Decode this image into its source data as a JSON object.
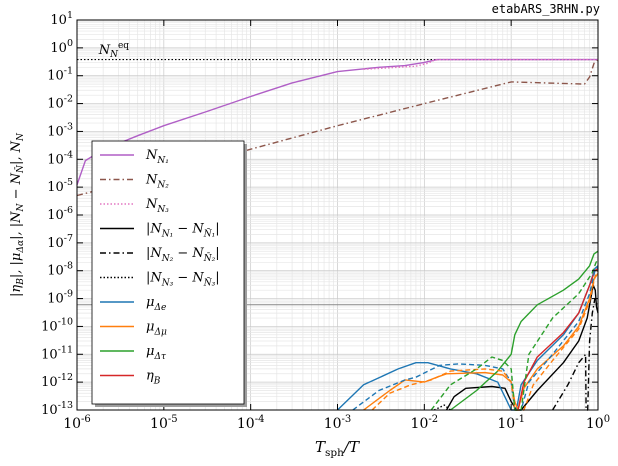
{
  "header": {
    "filename": "etabARS_3RHN.py"
  },
  "chart_data": {
    "type": "line",
    "title": "",
    "xlabel": "T_sph/T",
    "ylabel": "|η_B|, |μ_Δα|, |N_Nj − N_N̄j|, N_Nj",
    "xscale": "log",
    "yscale": "log",
    "xlim": [
      1e-06,
      1
    ],
    "ylim": [
      1e-13,
      10
    ],
    "grid": true,
    "legend_position": "left",
    "x_ticks": [
      "10^-6",
      "10^-5",
      "10^-4",
      "10^-3",
      "10^-2",
      "10^-1",
      "10^0"
    ],
    "y_ticks": [
      "10^-13",
      "10^-12",
      "10^-11",
      "10^-10",
      "10^-9",
      "10^-8",
      "10^-7",
      "10^-6",
      "10^-5",
      "10^-4",
      "10^-3",
      "10^-2",
      "10^-1",
      "10^0",
      "10^1"
    ],
    "annotations": [
      {
        "text": "N_N^eq",
        "x": 1.6e-06,
        "y": 0.6
      }
    ],
    "reference_lines": [
      {
        "name": "N_N^eq",
        "y": 0.38,
        "style": "dotted",
        "color": "#000000"
      },
      {
        "name": "eta_B_observed",
        "y": 6e-10,
        "style": "solid",
        "color": "#888888"
      }
    ],
    "series": [
      {
        "name": "N_N1",
        "color": "#b05fc6",
        "style": "solid",
        "points": [
          [
            1e-06,
            1.2e-05
          ],
          [
            1.25e-06,
            9e-05
          ],
          [
            2e-06,
            0.00022
          ],
          [
            5e-06,
            0.0007
          ],
          [
            1e-05,
            0.0016
          ],
          [
            3e-05,
            0.005
          ],
          [
            0.0001,
            0.018
          ],
          [
            0.0003,
            0.055
          ],
          [
            0.001,
            0.14
          ],
          [
            0.003,
            0.2
          ],
          [
            0.006,
            0.23
          ],
          [
            0.01,
            0.3
          ],
          [
            0.014,
            0.38
          ],
          [
            1,
            0.38
          ]
        ]
      },
      {
        "name": "N_N2",
        "color": "#8c564b",
        "style": "dashdot",
        "points": [
          [
            1e-06,
            5e-06
          ],
          [
            1e-05,
            3e-05
          ],
          [
            0.0001,
            0.00023
          ],
          [
            0.001,
            0.0016
          ],
          [
            0.01,
            0.01
          ],
          [
            0.1,
            0.06
          ],
          [
            0.7,
            0.05
          ],
          [
            0.8,
            0.09
          ],
          [
            0.9,
            0.28
          ],
          [
            1,
            0.38
          ]
        ]
      },
      {
        "name": "N_N3",
        "color": "#e377c2",
        "style": "dotted",
        "points": [
          [
            0.002,
            0.17
          ],
          [
            0.005,
            0.2
          ],
          [
            0.008,
            0.22
          ],
          [
            0.011,
            0.28
          ],
          [
            0.013,
            0.36
          ],
          [
            0.015,
            0.38
          ],
          [
            1,
            0.38
          ]
        ]
      },
      {
        "name": "|N_N1 − N_N̄1|",
        "color": "#000000",
        "style": "solid",
        "points": [
          [
            0.018,
            1e-13
          ],
          [
            0.022,
            3e-13
          ],
          [
            0.03,
            6e-13
          ],
          [
            0.06,
            7e-13
          ],
          [
            0.085,
            6e-13
          ],
          [
            0.1,
            2e-13
          ],
          [
            0.115,
            1e-13
          ],
          [
            0.13,
            1e-13
          ],
          [
            0.2,
            5e-13
          ],
          [
            0.4,
            5e-12
          ],
          [
            0.6,
            3e-11
          ],
          [
            0.75,
            2e-10
          ],
          [
            0.88,
            3e-09
          ],
          [
            0.93,
            2e-09
          ],
          [
            0.96,
            5e-10
          ],
          [
            1,
            3e-10
          ]
        ]
      },
      {
        "name": "|N_N2 − N_N̄2|",
        "color": "#000000",
        "style": "dashdot",
        "points": [
          [
            0.3,
            1e-13
          ],
          [
            0.45,
            8e-13
          ],
          [
            0.6,
            5e-12
          ],
          [
            0.68,
            8e-12
          ],
          [
            0.72,
            1e-11
          ],
          [
            0.73,
            1e-13
          ],
          [
            0.76,
            1e-13
          ],
          [
            0.8,
            3e-11
          ],
          [
            0.86,
            3e-10
          ],
          [
            0.92,
            1e-09
          ],
          [
            0.97,
            6e-10
          ],
          [
            1,
            5e-10
          ]
        ]
      },
      {
        "name": "|N_N3 − N_N̄3|",
        "color": "#000000",
        "style": "dotted",
        "points": [
          [
            0.013,
            1e-13
          ],
          [
            0.017,
            1.5e-13
          ],
          [
            0.02,
            1e-13
          ]
        ]
      },
      {
        "name": "μ_Δe",
        "color": "#1f77b4",
        "style": "solid",
        "points": [
          [
            0.001,
            1e-13
          ],
          [
            0.002,
            8e-13
          ],
          [
            0.005,
            3e-12
          ],
          [
            0.008,
            5e-12
          ],
          [
            0.011,
            5e-12
          ],
          [
            0.02,
            3e-12
          ],
          [
            0.04,
            2e-12
          ],
          [
            0.07,
            1e-12
          ],
          [
            0.09,
            2e-13
          ],
          [
            0.1,
            1e-13
          ],
          [
            0.115,
            1e-13
          ],
          [
            0.13,
            8e-13
          ],
          [
            0.2,
            6e-12
          ],
          [
            0.4,
            5e-11
          ],
          [
            0.6,
            3e-10
          ],
          [
            0.8,
            3e-09
          ],
          [
            0.92,
            1.2e-08
          ],
          [
            1,
            1.5e-08
          ]
        ]
      },
      {
        "name": "μ_Δμ",
        "color": "#ff7f0e",
        "style": "solid",
        "points": [
          [
            0.002,
            1e-13
          ],
          [
            0.004,
            5e-13
          ],
          [
            0.006,
            1.2e-12
          ],
          [
            0.01,
            1e-12
          ],
          [
            0.014,
            1.5e-12
          ],
          [
            0.018,
            2e-12
          ],
          [
            0.05,
            2.2e-12
          ],
          [
            0.08,
            1.8e-12
          ],
          [
            0.1,
            1e-12
          ],
          [
            0.11,
            2e-13
          ],
          [
            0.12,
            1e-13
          ],
          [
            0.14,
            6e-13
          ],
          [
            0.2,
            3e-12
          ],
          [
            0.4,
            2e-11
          ],
          [
            0.6,
            1e-10
          ],
          [
            0.8,
            1e-09
          ],
          [
            0.9,
            5e-09
          ],
          [
            1,
            8e-09
          ]
        ]
      },
      {
        "name": "μ_Δτ",
        "color": "#2ca02c",
        "style": "solid",
        "points": [
          [
            0.02,
            1e-13
          ],
          [
            0.04,
            5e-13
          ],
          [
            0.07,
            2.5e-12
          ],
          [
            0.1,
            1e-11
          ],
          [
            0.11,
            5e-11
          ],
          [
            0.13,
            1.5e-10
          ],
          [
            0.2,
            6e-10
          ],
          [
            0.4,
            2e-09
          ],
          [
            0.6,
            5e-09
          ],
          [
            0.8,
            1.5e-08
          ],
          [
            0.9,
            4e-08
          ],
          [
            1,
            5e-08
          ]
        ]
      },
      {
        "name": "η_B",
        "color": "#d62728",
        "style": "solid",
        "points": [
          [
            0.12,
            1e-13
          ],
          [
            0.14,
            1e-12
          ],
          [
            0.2,
            8e-12
          ],
          [
            0.4,
            6e-11
          ],
          [
            0.6,
            3e-10
          ],
          [
            0.8,
            3e-09
          ],
          [
            0.92,
            1e-08
          ],
          [
            1,
            1.2e-08
          ]
        ]
      },
      {
        "name": "μ_Δe (dashed)",
        "color": "#1f77b4",
        "style": "dashed",
        "points": [
          [
            0.0015,
            1e-13
          ],
          [
            0.003,
            5e-13
          ],
          [
            0.006,
            1.2e-12
          ],
          [
            0.008,
            1.5e-12
          ],
          [
            0.015,
            4e-12
          ],
          [
            0.025,
            4.5e-12
          ],
          [
            0.05,
            4e-12
          ],
          [
            0.08,
            3e-12
          ],
          [
            0.1,
            1e-12
          ],
          [
            0.11,
            1e-13
          ],
          [
            0.13,
            1e-13
          ],
          [
            0.16,
            1e-12
          ],
          [
            0.3,
            1e-11
          ],
          [
            0.6,
            1.5e-10
          ],
          [
            0.8,
            1.5e-09
          ],
          [
            0.92,
            1e-08
          ],
          [
            1,
            1.3e-08
          ]
        ]
      },
      {
        "name": "μ_Δμ (dashed)",
        "color": "#ff7f0e",
        "style": "dashed",
        "points": [
          [
            0.0025,
            1e-13
          ],
          [
            0.004,
            4e-13
          ],
          [
            0.007,
            8e-13
          ],
          [
            0.012,
            1.2e-12
          ],
          [
            0.02,
            2.5e-12
          ],
          [
            0.05,
            3e-12
          ],
          [
            0.08,
            2.5e-12
          ],
          [
            0.1,
            1e-12
          ],
          [
            0.11,
            1e-13
          ],
          [
            0.14,
            1e-13
          ],
          [
            0.18,
            8e-13
          ],
          [
            0.3,
            6e-12
          ],
          [
            0.6,
            8e-11
          ],
          [
            0.8,
            8e-10
          ],
          [
            0.92,
            6e-09
          ],
          [
            1,
            1e-08
          ]
        ]
      },
      {
        "name": "μ_Δτ (dashed)",
        "color": "#2ca02c",
        "style": "dashed",
        "points": [
          [
            0.012,
            1e-13
          ],
          [
            0.02,
            8e-13
          ],
          [
            0.04,
            3e-12
          ],
          [
            0.06,
            8e-12
          ],
          [
            0.08,
            6e-12
          ],
          [
            0.1,
            3e-12
          ],
          [
            0.11,
            1e-13
          ],
          [
            0.13,
            1e-13
          ],
          [
            0.16,
            1e-11
          ],
          [
            0.3,
            2e-10
          ],
          [
            0.6,
            1.5e-09
          ],
          [
            0.85,
            8e-09
          ],
          [
            0.95,
            2e-08
          ],
          [
            1,
            2.5e-08
          ]
        ]
      }
    ],
    "legend": [
      {
        "label": "N",
        "sub": "N₁",
        "color": "#b05fc6",
        "style": "solid"
      },
      {
        "label": "N",
        "sub": "N₂",
        "color": "#8c564b",
        "style": "dashdot"
      },
      {
        "label": "N",
        "sub": "N₃",
        "color": "#e377c2",
        "style": "dotted"
      },
      {
        "label": "|N",
        "sub": "N₁",
        "mid": " − N",
        "sub2": "N̄₁",
        "end": "|",
        "color": "#000000",
        "style": "solid"
      },
      {
        "label": "|N",
        "sub": "N₂",
        "mid": " − N",
        "sub2": "N̄₂",
        "end": "|",
        "color": "#000000",
        "style": "dashdot"
      },
      {
        "label": "|N",
        "sub": "N₃",
        "mid": " − N",
        "sub2": "N̄₃",
        "end": "|",
        "color": "#000000",
        "style": "dotted"
      },
      {
        "label": "μ",
        "sub": "Δe",
        "color": "#1f77b4",
        "style": "solid"
      },
      {
        "label": "μ",
        "sub": "Δμ",
        "color": "#ff7f0e",
        "style": "solid"
      },
      {
        "label": "μ",
        "sub": "Δτ",
        "color": "#2ca02c",
        "style": "solid"
      },
      {
        "label": "η",
        "sub": "B",
        "color": "#d62728",
        "style": "solid"
      }
    ]
  }
}
